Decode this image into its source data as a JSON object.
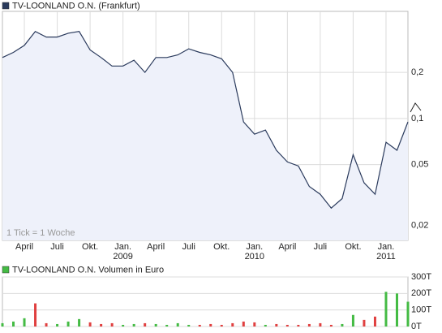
{
  "chart_data": [
    {
      "type": "line",
      "annotation": "1 Tick = 1 Woche",
      "x": [
        "2008-02",
        "2008-03",
        "2008-04",
        "2008-05",
        "2008-06",
        "2008-07",
        "2008-08",
        "2008-09",
        "2008-10",
        "2008-11",
        "2008-12",
        "2009-01",
        "2009-02",
        "2009-03",
        "2009-04",
        "2009-05",
        "2009-06",
        "2009-07",
        "2009-08",
        "2009-09",
        "2009-10",
        "2009-11",
        "2009-12",
        "2010-01",
        "2010-02",
        "2010-03",
        "2010-04",
        "2010-05",
        "2010-06",
        "2010-07",
        "2010-08",
        "2010-09",
        "2010-10",
        "2010-11",
        "2010-12",
        "2011-01",
        "2011-02",
        "2011-03"
      ],
      "series": [
        {
          "name": "TV-LOONLAND O.N. (Frankfurt)",
          "color": "#2a3a5c",
          "values": [
            0.25,
            0.27,
            0.3,
            0.37,
            0.34,
            0.34,
            0.36,
            0.37,
            0.28,
            0.25,
            0.22,
            0.22,
            0.24,
            0.2,
            0.25,
            0.25,
            0.26,
            0.285,
            0.27,
            0.26,
            0.245,
            0.2,
            0.095,
            0.079,
            0.084,
            0.062,
            0.052,
            0.049,
            0.036,
            0.032,
            0.026,
            0.03,
            0.058,
            0.038,
            0.032,
            0.07,
            0.062,
            0.095
          ]
        }
      ],
      "fill_color": "#eef1fa",
      "log_scale": true,
      "grid": true,
      "xlim": [
        "2008-02",
        "2011-03"
      ],
      "xticks": [
        {
          "value": "2008-04",
          "label": "April"
        },
        {
          "value": "2008-07",
          "label": "Juli"
        },
        {
          "value": "2008-10",
          "label": "Okt."
        },
        {
          "value": "2009-01",
          "label": "Jan."
        },
        {
          "value": "2009-04",
          "label": "April"
        },
        {
          "value": "2009-07",
          "label": "Juli"
        },
        {
          "value": "2009-10",
          "label": "Okt."
        },
        {
          "value": "2010-01",
          "label": "Jan."
        },
        {
          "value": "2010-04",
          "label": "April"
        },
        {
          "value": "2010-07",
          "label": "Juli"
        },
        {
          "value": "2010-10",
          "label": "Okt."
        },
        {
          "value": "2011-01",
          "label": "Jan."
        }
      ],
      "xtick_years": [
        {
          "value": "2009-01",
          "label": "2009"
        },
        {
          "value": "2010-01",
          "label": "2010"
        },
        {
          "value": "2011-01",
          "label": "2011"
        }
      ],
      "ylim": [
        0.016,
        0.5
      ],
      "yticks": [
        {
          "value": 0.2,
          "label": "0,2"
        },
        {
          "value": 0.1,
          "label": "0,1"
        },
        {
          "value": 0.05,
          "label": "0,05"
        },
        {
          "value": 0.02,
          "label": "0,02"
        }
      ]
    },
    {
      "type": "bar",
      "x": [
        "2008-02",
        "2008-03",
        "2008-04",
        "2008-05",
        "2008-06",
        "2008-07",
        "2008-08",
        "2008-09",
        "2008-10",
        "2008-11",
        "2008-12",
        "2009-01",
        "2009-02",
        "2009-03",
        "2009-04",
        "2009-05",
        "2009-06",
        "2009-07",
        "2009-08",
        "2009-09",
        "2009-10",
        "2009-11",
        "2009-12",
        "2010-01",
        "2010-02",
        "2010-03",
        "2010-04",
        "2010-05",
        "2010-06",
        "2010-07",
        "2010-08",
        "2010-09",
        "2010-10",
        "2010-11",
        "2010-12",
        "2011-01",
        "2011-02",
        "2011-03"
      ],
      "series": [
        {
          "name": "TV-LOONLAND O.N. Volumen in Euro",
          "color": "#44bb44",
          "values": [
            20000,
            30000,
            50000,
            140000,
            20000,
            15000,
            30000,
            45000,
            25000,
            15000,
            20000,
            10000,
            15000,
            20000,
            15000,
            10000,
            20000,
            10000,
            10000,
            15000,
            10000,
            20000,
            30000,
            25000,
            10000,
            15000,
            10000,
            10000,
            15000,
            20000,
            10000,
            15000,
            70000,
            40000,
            60000,
            210000,
            200000,
            150000
          ],
          "colors": [
            "#44bb44",
            "#44bb44",
            "#44bb44",
            "#e04040",
            "#e04040",
            "#44bb44",
            "#44bb44",
            "#44bb44",
            "#e04040",
            "#e04040",
            "#e04040",
            "#44bb44",
            "#44bb44",
            "#e04040",
            "#44bb44",
            "#44bb44",
            "#44bb44",
            "#44bb44",
            "#e04040",
            "#e04040",
            "#e04040",
            "#e04040",
            "#e04040",
            "#e04040",
            "#44bb44",
            "#e04040",
            "#e04040",
            "#e04040",
            "#e04040",
            "#e04040",
            "#e04040",
            "#44bb44",
            "#44bb44",
            "#e04040",
            "#e04040",
            "#44bb44",
            "#44bb44",
            "#44bb44"
          ]
        }
      ],
      "xlim": [
        "2008-02",
        "2011-03"
      ],
      "grid": true,
      "ylim": [
        0,
        300000
      ],
      "yticks": [
        {
          "value": 300000,
          "label": "300T"
        },
        {
          "value": 200000,
          "label": "200T"
        },
        {
          "value": 100000,
          "label": "100T"
        },
        {
          "value": 0,
          "label": "0T"
        }
      ]
    }
  ]
}
